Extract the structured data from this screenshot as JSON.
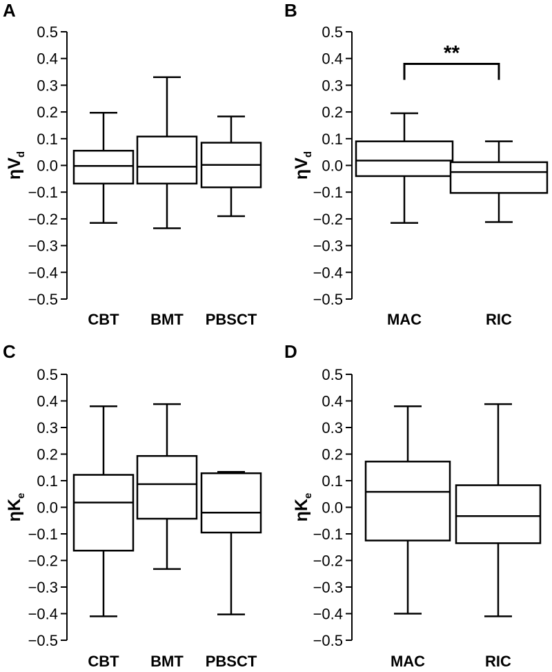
{
  "chart_data": [
    {
      "type": "box",
      "panel_label": "A",
      "ylabel": "ηV",
      "ylabel_sub": "d",
      "ylim": [
        -0.5,
        0.5
      ],
      "yticks": [
        "-0.5",
        "-0.4",
        "-0.3",
        "-0.2",
        "-0.1",
        "0.0",
        "0.1",
        "0.2",
        "0.3",
        "0.4",
        "0.5"
      ],
      "categories": [
        "CBT",
        "BMT",
        "PBSCT"
      ],
      "boxes": [
        {
          "whisker_low": -0.215,
          "q1": -0.068,
          "median": -0.002,
          "q3": 0.055,
          "whisker_high": 0.197
        },
        {
          "whisker_low": -0.235,
          "q1": -0.068,
          "median": -0.005,
          "q3": 0.108,
          "whisker_high": 0.33
        },
        {
          "whisker_low": -0.19,
          "q1": -0.082,
          "median": 0.002,
          "q3": 0.085,
          "whisker_high": 0.183
        }
      ]
    },
    {
      "type": "box",
      "panel_label": "B",
      "ylabel": "ηV",
      "ylabel_sub": "d",
      "ylim": [
        -0.5,
        0.5
      ],
      "yticks": [
        "-0.5",
        "-0.4",
        "-0.3",
        "-0.2",
        "-0.1",
        "0.0",
        "0.1",
        "0.2",
        "0.3",
        "0.4",
        "0.5"
      ],
      "categories": [
        "MAC",
        "RIC"
      ],
      "boxes": [
        {
          "whisker_low": -0.215,
          "q1": -0.04,
          "median": 0.018,
          "q3": 0.09,
          "whisker_high": 0.195
        },
        {
          "whisker_low": -0.212,
          "q1": -0.103,
          "median": -0.025,
          "q3": 0.012,
          "whisker_high": 0.09
        }
      ],
      "annotation": "**"
    },
    {
      "type": "box",
      "panel_label": "C",
      "ylabel": "ηK",
      "ylabel_sub": "e",
      "ylim": [
        -0.5,
        0.5
      ],
      "yticks": [
        "-0.5",
        "-0.4",
        "-0.3",
        "-0.2",
        "-0.1",
        "0.0",
        "0.1",
        "0.2",
        "0.3",
        "0.4",
        "0.5"
      ],
      "categories": [
        "CBT",
        "BMT",
        "PBSCT"
      ],
      "boxes": [
        {
          "whisker_low": -0.41,
          "q1": -0.163,
          "median": 0.018,
          "q3": 0.122,
          "whisker_high": 0.38
        },
        {
          "whisker_low": -0.232,
          "q1": -0.043,
          "median": 0.087,
          "q3": 0.193,
          "whisker_high": 0.388
        },
        {
          "whisker_low": -0.403,
          "q1": -0.095,
          "median": -0.02,
          "q3": 0.128,
          "whisker_high": 0.133
        }
      ]
    },
    {
      "type": "box",
      "panel_label": "D",
      "ylabel": "ηK",
      "ylabel_sub": "e",
      "ylim": [
        -0.5,
        0.5
      ],
      "yticks": [
        "-0.5",
        "-0.4",
        "-0.3",
        "-0.2",
        "-0.1",
        "0.0",
        "0.1",
        "0.2",
        "0.3",
        "0.4",
        "0.5"
      ],
      "categories": [
        "MAC",
        "RIC"
      ],
      "boxes": [
        {
          "whisker_low": -0.4,
          "q1": -0.125,
          "median": 0.058,
          "q3": 0.172,
          "whisker_high": 0.38
        },
        {
          "whisker_low": -0.41,
          "q1": -0.135,
          "median": -0.033,
          "q3": 0.083,
          "whisker_high": 0.388
        }
      ]
    }
  ]
}
